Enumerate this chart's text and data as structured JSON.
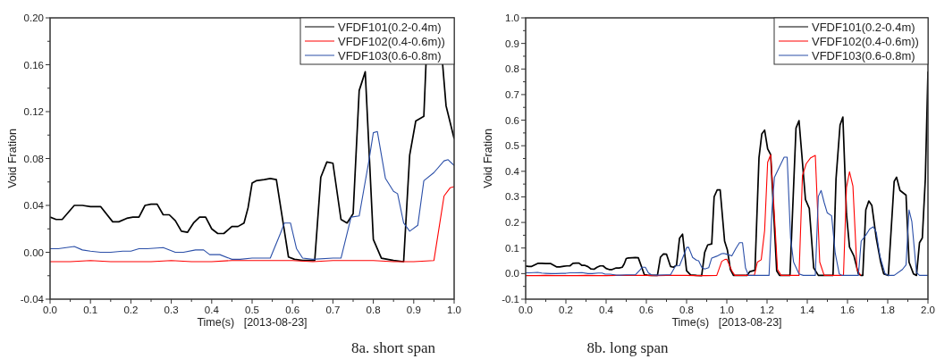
{
  "chart_data": [
    {
      "type": "line",
      "title": "8a. short span",
      "xlabel": "Time(s)   [2013-08-23]",
      "ylabel": "Void Fration",
      "xlim": [
        0,
        1
      ],
      "ylim": [
        -0.04,
        0.2
      ],
      "xticks": [
        {
          "value": 0,
          "label": "0.0"
        },
        {
          "value": 0.05,
          "label": null
        },
        {
          "value": 0.1,
          "label": "0.1"
        },
        {
          "value": 0.15,
          "label": null
        },
        {
          "value": 0.2,
          "label": "0.2"
        },
        {
          "value": 0.25,
          "label": null
        },
        {
          "value": 0.3,
          "label": "0.3"
        },
        {
          "value": 0.35,
          "label": null
        },
        {
          "value": 0.4,
          "label": "0.4"
        },
        {
          "value": 0.45,
          "label": null
        },
        {
          "value": 0.5,
          "label": "0.5"
        },
        {
          "value": 0.55,
          "label": null
        },
        {
          "value": 0.6,
          "label": "0.6"
        },
        {
          "value": 0.65,
          "label": null
        },
        {
          "value": 0.7,
          "label": "0.7"
        },
        {
          "value": 0.75,
          "label": null
        },
        {
          "value": 0.8,
          "label": "0.8"
        },
        {
          "value": 0.85,
          "label": null
        },
        {
          "value": 0.9,
          "label": "0.9"
        },
        {
          "value": 0.95,
          "label": null
        },
        {
          "value": 1,
          "label": "1.0"
        }
      ],
      "yticks": [
        {
          "value": -0.04,
          "label": "-0.04"
        },
        {
          "value": -0.02,
          "label": null
        },
        {
          "value": 0,
          "label": "0.00"
        },
        {
          "value": 0.02,
          "label": null
        },
        {
          "value": 0.04,
          "label": "0.04"
        },
        {
          "value": 0.06,
          "label": null
        },
        {
          "value": 0.08,
          "label": "0.08"
        },
        {
          "value": 0.1,
          "label": null
        },
        {
          "value": 0.12,
          "label": "0.12"
        },
        {
          "value": 0.14,
          "label": null
        },
        {
          "value": 0.16,
          "label": "0.16"
        },
        {
          "value": 0.18,
          "label": null
        },
        {
          "value": 0.2,
          "label": "0.20"
        }
      ],
      "legend": "top right",
      "series": [
        {
          "name": "VFDF101(0.2-0.4m)",
          "color": "#000000",
          "x": [
            0,
            0.015,
            0.03,
            0.06,
            0.08,
            0.1,
            0.125,
            0.155,
            0.17,
            0.19,
            0.205,
            0.22,
            0.235,
            0.25,
            0.265,
            0.28,
            0.295,
            0.31,
            0.325,
            0.34,
            0.355,
            0.37,
            0.385,
            0.4,
            0.415,
            0.43,
            0.45,
            0.465,
            0.48,
            0.49,
            0.5,
            0.51,
            0.53,
            0.545,
            0.56,
            0.59,
            0.605,
            0.625,
            0.655,
            0.67,
            0.685,
            0.7,
            0.72,
            0.735,
            0.75,
            0.765,
            0.78,
            0.8,
            0.82,
            0.85,
            0.875,
            0.89,
            0.905,
            0.925,
            0.935,
            0.962,
            0.98,
            1.0
          ],
          "values": [
            0.03,
            0.028,
            0.028,
            0.04,
            0.04,
            0.039,
            0.039,
            0.026,
            0.026,
            0.029,
            0.03,
            0.03,
            0.04,
            0.041,
            0.041,
            0.032,
            0.032,
            0.027,
            0.018,
            0.017,
            0.025,
            0.03,
            0.03,
            0.02,
            0.016,
            0.016,
            0.022,
            0.022,
            0.025,
            0.038,
            0.059,
            0.061,
            0.062,
            0.063,
            0.062,
            -0.004,
            -0.006,
            -0.007,
            -0.007,
            0.064,
            0.077,
            0.076,
            0.028,
            0.025,
            0.033,
            0.138,
            0.154,
            0.011,
            -0.005,
            -0.007,
            -0.008,
            0.083,
            0.112,
            0.116,
            0.2,
            0.2,
            0.125,
            0.097
          ]
        },
        {
          "name": "VFDF102(0.4-0.6m))",
          "color": "#ff0000",
          "x": [
            0,
            0.05,
            0.1,
            0.15,
            0.2,
            0.25,
            0.3,
            0.35,
            0.4,
            0.45,
            0.5,
            0.55,
            0.6,
            0.65,
            0.7,
            0.75,
            0.8,
            0.85,
            0.9,
            0.95,
            0.975,
            0.99,
            1.0
          ],
          "values": [
            -0.008,
            -0.008,
            -0.007,
            -0.008,
            -0.008,
            -0.008,
            -0.007,
            -0.008,
            -0.008,
            -0.007,
            -0.007,
            -0.007,
            -0.007,
            -0.008,
            -0.007,
            -0.007,
            -0.007,
            -0.008,
            -0.008,
            -0.007,
            0.048,
            0.055,
            0.056
          ]
        },
        {
          "name": "VFDF103(0.6-0.8m)",
          "color": "#2b4fa8",
          "x": [
            0,
            0.02,
            0.06,
            0.08,
            0.1,
            0.125,
            0.15,
            0.18,
            0.2,
            0.22,
            0.24,
            0.28,
            0.31,
            0.33,
            0.36,
            0.38,
            0.395,
            0.42,
            0.45,
            0.47,
            0.5,
            0.545,
            0.57,
            0.58,
            0.595,
            0.61,
            0.625,
            0.65,
            0.7,
            0.72,
            0.745,
            0.765,
            0.79,
            0.8,
            0.81,
            0.83,
            0.85,
            0.86,
            0.875,
            0.89,
            0.91,
            0.925,
            0.95,
            0.975,
            0.985,
            1.0
          ],
          "values": [
            0.003,
            0.003,
            0.005,
            0.002,
            0.001,
            0,
            0,
            0.001,
            0.001,
            0.003,
            0.003,
            0.004,
            0,
            0,
            0.002,
            0.002,
            -0.002,
            -0.002,
            -0.006,
            -0.006,
            -0.005,
            -0.005,
            0.016,
            0.025,
            0.025,
            0.003,
            -0.005,
            -0.006,
            -0.005,
            -0.005,
            0.03,
            0.031,
            0.08,
            0.102,
            0.103,
            0.063,
            0.052,
            0.05,
            0.025,
            0.018,
            0.023,
            0.061,
            0.068,
            0.078,
            0.079,
            0.074
          ]
        }
      ]
    },
    {
      "type": "line",
      "title": "8b. long span",
      "xlabel": "Time(s)   [2013-08-23]",
      "ylabel": "Void Fration",
      "xlim": [
        0,
        2
      ],
      "ylim": [
        -0.1,
        1
      ],
      "xticks": [
        {
          "value": 0,
          "label": "0.0"
        },
        {
          "value": 0.1,
          "label": null
        },
        {
          "value": 0.2,
          "label": "0.2"
        },
        {
          "value": 0.3,
          "label": null
        },
        {
          "value": 0.4,
          "label": "0.4"
        },
        {
          "value": 0.5,
          "label": null
        },
        {
          "value": 0.6,
          "label": "0.6"
        },
        {
          "value": 0.7,
          "label": null
        },
        {
          "value": 0.8,
          "label": "0.8"
        },
        {
          "value": 0.9,
          "label": null
        },
        {
          "value": 1,
          "label": "1.0"
        },
        {
          "value": 1.1,
          "label": null
        },
        {
          "value": 1.2,
          "label": "1.2"
        },
        {
          "value": 1.3,
          "label": null
        },
        {
          "value": 1.4,
          "label": "1.4"
        },
        {
          "value": 1.5,
          "label": null
        },
        {
          "value": 1.6,
          "label": "1.6"
        },
        {
          "value": 1.7,
          "label": null
        },
        {
          "value": 1.8,
          "label": "1.8"
        },
        {
          "value": 1.9,
          "label": null
        },
        {
          "value": 2,
          "label": "2.0"
        }
      ],
      "yticks": [
        {
          "value": -0.1,
          "label": "-0.1"
        },
        {
          "value": -0.05,
          "label": null
        },
        {
          "value": 0,
          "label": "0.0"
        },
        {
          "value": 0.05,
          "label": null
        },
        {
          "value": 0.1,
          "label": "0.1"
        },
        {
          "value": 0.15,
          "label": null
        },
        {
          "value": 0.2,
          "label": "0.2"
        },
        {
          "value": 0.25,
          "label": null
        },
        {
          "value": 0.3,
          "label": "0.3"
        },
        {
          "value": 0.35,
          "label": null
        },
        {
          "value": 0.4,
          "label": "0.4"
        },
        {
          "value": 0.45,
          "label": null
        },
        {
          "value": 0.5,
          "label": "0.5"
        },
        {
          "value": 0.55,
          "label": null
        },
        {
          "value": 0.6,
          "label": "0.6"
        },
        {
          "value": 0.65,
          "label": null
        },
        {
          "value": 0.7,
          "label": "0.7"
        },
        {
          "value": 0.75,
          "label": null
        },
        {
          "value": 0.8,
          "label": "0.8"
        },
        {
          "value": 0.85,
          "label": null
        },
        {
          "value": 0.9,
          "label": "0.9"
        },
        {
          "value": 0.95,
          "label": null
        },
        {
          "value": 1,
          "label": "1.0"
        }
      ],
      "legend": "top right",
      "series": [
        {
          "name": "VFDF101(0.2-0.4m)",
          "color": "#000000",
          "x": [
            0,
            0.015,
            0.03,
            0.06,
            0.08,
            0.1,
            0.125,
            0.155,
            0.17,
            0.19,
            0.205,
            0.22,
            0.235,
            0.25,
            0.265,
            0.28,
            0.295,
            0.31,
            0.325,
            0.34,
            0.355,
            0.37,
            0.385,
            0.4,
            0.415,
            0.43,
            0.45,
            0.465,
            0.48,
            0.49,
            0.5,
            0.51,
            0.53,
            0.545,
            0.56,
            0.59,
            0.605,
            0.625,
            0.655,
            0.67,
            0.685,
            0.7,
            0.72,
            0.735,
            0.75,
            0.765,
            0.78,
            0.8,
            0.82,
            0.85,
            0.875,
            0.89,
            0.905,
            0.925,
            0.937,
            0.952,
            0.967,
            0.989,
            1.003,
            1.018,
            1.033,
            1.1,
            1.115,
            1.14,
            1.16,
            1.174,
            1.188,
            1.203,
            1.218,
            1.248,
            1.262,
            1.314,
            1.344,
            1.359,
            1.373,
            1.391,
            1.41,
            1.432,
            1.455,
            1.528,
            1.543,
            1.563,
            1.577,
            1.595,
            1.61,
            1.632,
            1.654,
            1.666,
            1.676,
            1.691,
            1.706,
            1.721,
            1.743,
            1.765,
            1.78,
            1.803,
            1.832,
            1.844,
            1.861,
            1.891,
            1.906,
            1.928,
            1.943,
            1.958,
            1.972,
            1.987,
            2.0
          ],
          "values": [
            0.03,
            0.028,
            0.028,
            0.04,
            0.04,
            0.039,
            0.039,
            0.026,
            0.026,
            0.029,
            0.03,
            0.03,
            0.04,
            0.041,
            0.041,
            0.032,
            0.032,
            0.027,
            0.018,
            0.017,
            0.025,
            0.03,
            0.03,
            0.02,
            0.016,
            0.016,
            0.022,
            0.022,
            0.025,
            0.038,
            0.059,
            0.061,
            0.062,
            0.063,
            0.062,
            -0.004,
            -0.006,
            -0.007,
            -0.007,
            0.064,
            0.077,
            0.076,
            0.028,
            0.025,
            0.033,
            0.138,
            0.154,
            0.011,
            -0.005,
            -0.007,
            -0.008,
            0.083,
            0.112,
            0.116,
            0.3,
            0.327,
            0.327,
            0.127,
            0.092,
            0.016,
            -0.007,
            -0.007,
            0.008,
            0.013,
            0.453,
            0.546,
            0.561,
            0.488,
            0.465,
            0.011,
            -0.007,
            -0.007,
            0.569,
            0.598,
            0.465,
            0.29,
            0.255,
            0.022,
            -0.007,
            -0.007,
            0.371,
            0.581,
            0.612,
            0.232,
            0.104,
            0.069,
            -0.001,
            -0.007,
            -0.007,
            0.249,
            0.284,
            0.267,
            0.139,
            0.045,
            -0.001,
            -0.007,
            0.36,
            0.377,
            0.325,
            0.307,
            0.045,
            -0.001,
            -0.007,
            0.121,
            0.139,
            0.371,
            0.79
          ]
        },
        {
          "name": "VFDF102(0.4-0.6m))",
          "color": "#ff0000",
          "x": [
            0,
            0.05,
            0.1,
            0.15,
            0.2,
            0.25,
            0.3,
            0.35,
            0.4,
            0.45,
            0.5,
            0.55,
            0.6,
            0.65,
            0.7,
            0.75,
            0.8,
            0.85,
            0.9,
            0.95,
            0.975,
            0.99,
            1.0,
            1.025,
            1.04,
            1.137,
            1.152,
            1.171,
            1.188,
            1.203,
            1.218,
            1.233,
            1.252,
            1.27,
            1.359,
            1.376,
            1.395,
            1.417,
            1.44,
            1.462,
            1.484,
            1.58,
            1.595,
            1.61,
            1.627,
            1.647,
            1.666
          ],
          "values": [
            -0.008,
            -0.008,
            -0.007,
            -0.008,
            -0.008,
            -0.008,
            -0.007,
            -0.008,
            -0.008,
            -0.007,
            -0.007,
            -0.007,
            -0.007,
            -0.008,
            -0.007,
            -0.007,
            -0.007,
            -0.008,
            -0.008,
            -0.007,
            0.048,
            0.055,
            0.056,
            0.011,
            -0.007,
            -0.007,
            0.045,
            0.054,
            0.168,
            0.435,
            0.465,
            0.278,
            0.016,
            -0.007,
            -0.007,
            0.383,
            0.43,
            0.453,
            0.462,
            0.045,
            -0.007,
            -0.007,
            0.337,
            0.398,
            0.342,
            0.016,
            -0.007
          ]
        },
        {
          "name": "VFDF103(0.6-0.8m)",
          "color": "#2b4fa8",
          "x": [
            0,
            0.02,
            0.06,
            0.08,
            0.1,
            0.125,
            0.15,
            0.18,
            0.2,
            0.22,
            0.24,
            0.28,
            0.31,
            0.33,
            0.36,
            0.38,
            0.395,
            0.42,
            0.45,
            0.47,
            0.5,
            0.545,
            0.57,
            0.58,
            0.595,
            0.61,
            0.625,
            0.65,
            0.7,
            0.72,
            0.745,
            0.765,
            0.79,
            0.8,
            0.81,
            0.83,
            0.85,
            0.86,
            0.875,
            0.89,
            0.91,
            0.925,
            0.95,
            0.975,
            0.985,
            1.003,
            1.025,
            1.045,
            1.063,
            1.078,
            1.093,
            1.108,
            1.21,
            1.225,
            1.237,
            1.255,
            1.285,
            1.3,
            1.317,
            1.332,
            1.359,
            1.38,
            1.44,
            1.455,
            1.469,
            1.484,
            1.499,
            1.521,
            1.539,
            1.559,
            1.573,
            1.654,
            1.668,
            1.691,
            1.71,
            1.728,
            1.743,
            1.761,
            1.787,
            1.803,
            1.832,
            1.873,
            1.891,
            1.906,
            1.92,
            1.943,
            1.958,
            2.0
          ],
          "values": [
            0.003,
            0.003,
            0.005,
            0.002,
            0.001,
            0,
            0,
            0.001,
            0.001,
            0.003,
            0.003,
            0.004,
            0,
            0,
            0.002,
            0.002,
            -0.002,
            -0.002,
            -0.006,
            -0.006,
            -0.005,
            -0.005,
            0.016,
            0.025,
            0.025,
            0.003,
            -0.005,
            -0.006,
            -0.005,
            -0.005,
            0.03,
            0.031,
            0.08,
            0.102,
            0.103,
            0.063,
            0.052,
            0.05,
            0.025,
            0.018,
            0.023,
            0.061,
            0.068,
            0.078,
            0.079,
            0.075,
            0.069,
            0.098,
            0.121,
            0.121,
            0.022,
            -0.007,
            -0.007,
            0.255,
            0.377,
            0.406,
            0.455,
            0.455,
            0.139,
            0.045,
            -0.001,
            -0.007,
            -0.007,
            0.302,
            0.325,
            0.278,
            0.238,
            0.226,
            0.08,
            -0.001,
            -0.007,
            -0.007,
            0.127,
            0.15,
            0.174,
            0.183,
            0.162,
            0.069,
            -0.001,
            -0.007,
            -0.007,
            0.016,
            0.034,
            0.249,
            0.203,
            0.004,
            -0.007,
            -0.007
          ]
        }
      ]
    }
  ]
}
